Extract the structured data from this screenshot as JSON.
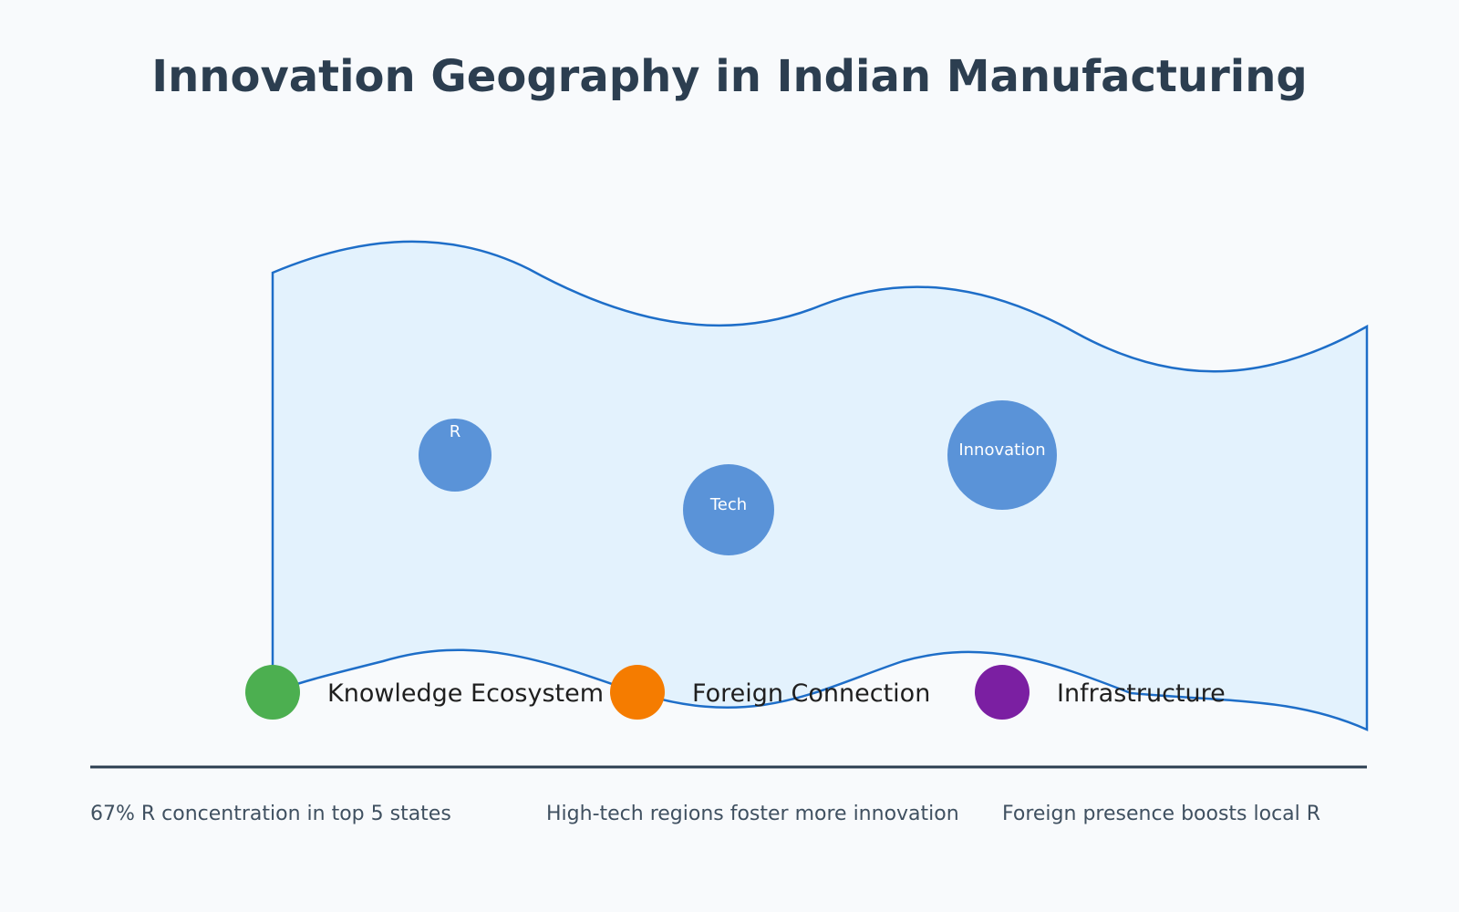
{
  "title": "Innovation Geography in Indian Manufacturing",
  "colors": {
    "title": "#2c3e50",
    "region_fill": "#e3f2fd",
    "region_stroke": "#1e6ec8",
    "bubble": "#4a88d4",
    "divider": "#2c3e50"
  },
  "bubbles": [
    {
      "label": "R"
    },
    {
      "label": "Tech"
    },
    {
      "label": "Innovation"
    }
  ],
  "legend": [
    {
      "label": "Knowledge Ecosystem",
      "color": "#4caf50"
    },
    {
      "label": "Foreign Connection",
      "color": "#f57c00"
    },
    {
      "label": "Infrastructure",
      "color": "#7b1fa2"
    }
  ],
  "stats": [
    "67% R concentration in top 5 states",
    "High-tech regions foster more innovation",
    "Foreign presence boosts local R"
  ]
}
